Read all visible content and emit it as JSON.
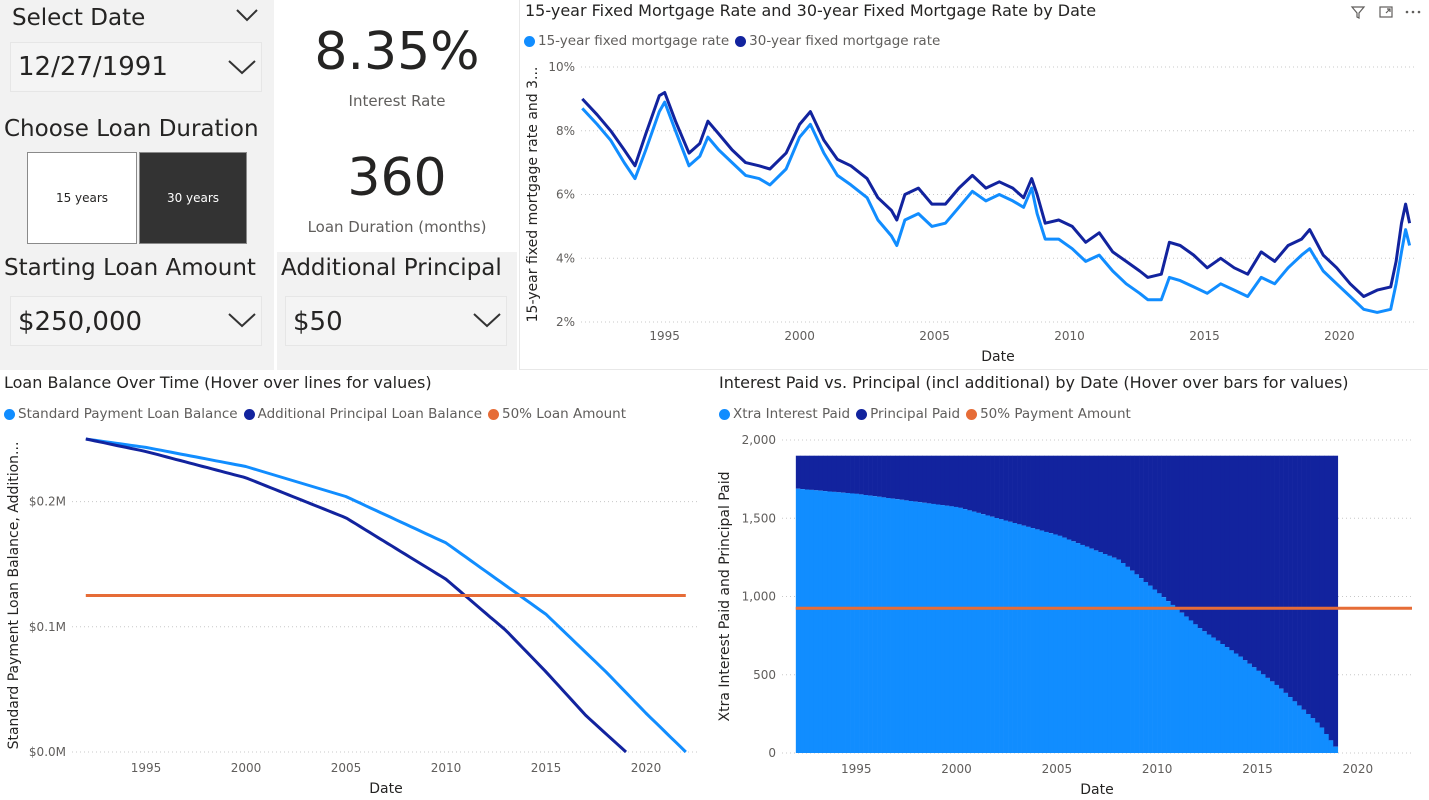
{
  "colors": {
    "light_blue": "#118DFF",
    "dark_blue": "#12239E",
    "orange": "#E66C37",
    "button_selected": "#333333"
  },
  "select_date": {
    "title": "Select Date",
    "value": "12/27/1991"
  },
  "loan_duration": {
    "title": "Choose Loan Duration",
    "options": [
      "15 years",
      "30 years"
    ],
    "selected": "30 years"
  },
  "starting_loan": {
    "title": "Starting Loan Amount",
    "value": "$250,000"
  },
  "additional_principal": {
    "title": "Additional Principal",
    "value": "$50"
  },
  "kpis": {
    "interest_rate_value": "8.35%",
    "interest_rate_label": "Interest Rate",
    "duration_value": "360",
    "duration_label": "Loan Duration (months)"
  },
  "visual_header": {
    "icons": [
      "filter-icon",
      "focus-mode-icon",
      "more-options-icon"
    ]
  },
  "chart_data": [
    {
      "id": "mortgage",
      "type": "line",
      "title": "15-year Fixed Mortgage Rate and 30-year Fixed Mortgage Rate by Date",
      "xlabel": "Date",
      "ylabel": "15-year fixed mortgage rate and 3...",
      "xlim": [
        1991.9,
        2022.8
      ],
      "ylim": [
        2,
        10
      ],
      "x_ticks": [
        1995,
        2000,
        2005,
        2010,
        2015,
        2020
      ],
      "y_ticks": [
        2,
        4,
        6,
        8,
        10
      ],
      "y_tick_labels": [
        "2%",
        "4%",
        "6%",
        "8%",
        "10%"
      ],
      "grid": true,
      "legend_position": "top-left",
      "series": [
        {
          "name": "15-year fixed mortgage rate",
          "color": "#118DFF",
          "points": [
            [
              1991.95,
              8.7
            ],
            [
              1992.5,
              8.2
            ],
            [
              1993.0,
              7.7
            ],
            [
              1993.5,
              7.0
            ],
            [
              1993.9,
              6.5
            ],
            [
              1994.3,
              7.4
            ],
            [
              1994.8,
              8.6
            ],
            [
              1995.0,
              8.9
            ],
            [
              1995.4,
              8.0
            ],
            [
              1995.9,
              6.9
            ],
            [
              1996.3,
              7.2
            ],
            [
              1996.6,
              7.8
            ],
            [
              1997.0,
              7.4
            ],
            [
              1997.5,
              7.0
            ],
            [
              1998.0,
              6.6
            ],
            [
              1998.5,
              6.5
            ],
            [
              1998.9,
              6.3
            ],
            [
              1999.5,
              6.8
            ],
            [
              2000.0,
              7.8
            ],
            [
              2000.4,
              8.2
            ],
            [
              2000.9,
              7.3
            ],
            [
              2001.4,
              6.6
            ],
            [
              2001.9,
              6.3
            ],
            [
              2002.5,
              5.9
            ],
            [
              2002.9,
              5.2
            ],
            [
              2003.4,
              4.7
            ],
            [
              2003.6,
              4.4
            ],
            [
              2003.9,
              5.2
            ],
            [
              2004.4,
              5.4
            ],
            [
              2004.9,
              5.0
            ],
            [
              2005.4,
              5.1
            ],
            [
              2005.9,
              5.6
            ],
            [
              2006.4,
              6.1
            ],
            [
              2006.9,
              5.8
            ],
            [
              2007.4,
              6.0
            ],
            [
              2007.9,
              5.8
            ],
            [
              2008.3,
              5.6
            ],
            [
              2008.6,
              6.2
            ],
            [
              2008.8,
              5.4
            ],
            [
              2009.1,
              4.6
            ],
            [
              2009.6,
              4.6
            ],
            [
              2010.1,
              4.3
            ],
            [
              2010.6,
              3.9
            ],
            [
              2011.1,
              4.1
            ],
            [
              2011.6,
              3.6
            ],
            [
              2012.1,
              3.2
            ],
            [
              2012.6,
              2.9
            ],
            [
              2012.9,
              2.7
            ],
            [
              2013.4,
              2.7
            ],
            [
              2013.7,
              3.4
            ],
            [
              2014.1,
              3.3
            ],
            [
              2014.6,
              3.1
            ],
            [
              2015.1,
              2.9
            ],
            [
              2015.6,
              3.2
            ],
            [
              2016.1,
              3.0
            ],
            [
              2016.6,
              2.8
            ],
            [
              2017.1,
              3.4
            ],
            [
              2017.6,
              3.2
            ],
            [
              2018.1,
              3.7
            ],
            [
              2018.6,
              4.1
            ],
            [
              2018.9,
              4.3
            ],
            [
              2019.4,
              3.6
            ],
            [
              2019.9,
              3.2
            ],
            [
              2020.4,
              2.8
            ],
            [
              2020.9,
              2.4
            ],
            [
              2021.4,
              2.3
            ],
            [
              2021.9,
              2.4
            ],
            [
              2022.1,
              3.2
            ],
            [
              2022.3,
              4.2
            ],
            [
              2022.45,
              4.9
            ],
            [
              2022.6,
              4.4
            ]
          ]
        },
        {
          "name": "30-year fixed mortgage rate",
          "color": "#12239E",
          "points": [
            [
              1991.95,
              9.0
            ],
            [
              1992.5,
              8.5
            ],
            [
              1993.0,
              8.0
            ],
            [
              1993.5,
              7.4
            ],
            [
              1993.9,
              6.9
            ],
            [
              1994.3,
              7.9
            ],
            [
              1994.8,
              9.1
            ],
            [
              1995.0,
              9.2
            ],
            [
              1995.4,
              8.3
            ],
            [
              1995.9,
              7.3
            ],
            [
              1996.3,
              7.6
            ],
            [
              1996.6,
              8.3
            ],
            [
              1997.0,
              7.9
            ],
            [
              1997.5,
              7.4
            ],
            [
              1998.0,
              7.0
            ],
            [
              1998.5,
              6.9
            ],
            [
              1998.9,
              6.8
            ],
            [
              1999.5,
              7.3
            ],
            [
              2000.0,
              8.2
            ],
            [
              2000.4,
              8.6
            ],
            [
              2000.9,
              7.7
            ],
            [
              2001.4,
              7.1
            ],
            [
              2001.9,
              6.9
            ],
            [
              2002.5,
              6.5
            ],
            [
              2002.9,
              5.9
            ],
            [
              2003.4,
              5.5
            ],
            [
              2003.6,
              5.2
            ],
            [
              2003.9,
              6.0
            ],
            [
              2004.4,
              6.2
            ],
            [
              2004.9,
              5.7
            ],
            [
              2005.4,
              5.7
            ],
            [
              2005.9,
              6.2
            ],
            [
              2006.4,
              6.6
            ],
            [
              2006.9,
              6.2
            ],
            [
              2007.4,
              6.4
            ],
            [
              2007.9,
              6.2
            ],
            [
              2008.3,
              5.9
            ],
            [
              2008.6,
              6.5
            ],
            [
              2008.8,
              6.0
            ],
            [
              2009.1,
              5.1
            ],
            [
              2009.6,
              5.2
            ],
            [
              2010.1,
              5.0
            ],
            [
              2010.6,
              4.5
            ],
            [
              2011.1,
              4.8
            ],
            [
              2011.6,
              4.2
            ],
            [
              2012.1,
              3.9
            ],
            [
              2012.6,
              3.6
            ],
            [
              2012.9,
              3.4
            ],
            [
              2013.4,
              3.5
            ],
            [
              2013.7,
              4.5
            ],
            [
              2014.1,
              4.4
            ],
            [
              2014.6,
              4.1
            ],
            [
              2015.1,
              3.7
            ],
            [
              2015.6,
              4.0
            ],
            [
              2016.1,
              3.7
            ],
            [
              2016.6,
              3.5
            ],
            [
              2017.1,
              4.2
            ],
            [
              2017.6,
              3.9
            ],
            [
              2018.1,
              4.4
            ],
            [
              2018.6,
              4.6
            ],
            [
              2018.9,
              4.9
            ],
            [
              2019.4,
              4.1
            ],
            [
              2019.9,
              3.7
            ],
            [
              2020.4,
              3.2
            ],
            [
              2020.9,
              2.8
            ],
            [
              2021.4,
              3.0
            ],
            [
              2021.9,
              3.1
            ],
            [
              2022.1,
              3.9
            ],
            [
              2022.3,
              5.1
            ],
            [
              2022.45,
              5.7
            ],
            [
              2022.6,
              5.1
            ]
          ]
        }
      ]
    },
    {
      "id": "balance",
      "type": "line",
      "title": "Loan Balance Over Time (Hover over lines for values)",
      "xlabel": "Date",
      "ylabel": "Standard Payment Loan Balance, Addition...",
      "xlim": [
        1991.3,
        2022.7
      ],
      "ylim": [
        0,
        250000
      ],
      "x_ticks": [
        1995,
        2000,
        2005,
        2010,
        2015,
        2020
      ],
      "y_ticks": [
        0,
        100000,
        200000
      ],
      "y_tick_labels": [
        "$0.0M",
        "$0.1M",
        "$0.2M"
      ],
      "grid": true,
      "legend_position": "top-left",
      "series": [
        {
          "name": "Standard Payment Loan Balance",
          "color": "#118DFF",
          "points": [
            [
              1991.99,
              250000
            ],
            [
              1995,
              243300
            ],
            [
              2000,
              228000
            ],
            [
              2005,
              204000
            ],
            [
              2010,
              167000
            ],
            [
              2015,
              110000
            ],
            [
              2018,
              64000
            ],
            [
              2020,
              31000
            ],
            [
              2021.99,
              0
            ]
          ]
        },
        {
          "name": "Additional Principal Loan Balance",
          "color": "#12239E",
          "points": [
            [
              1991.99,
              250000
            ],
            [
              1995,
              240000
            ],
            [
              2000,
              219000
            ],
            [
              2005,
              187000
            ],
            [
              2010,
              138000
            ],
            [
              2013,
              97000
            ],
            [
              2015,
              64000
            ],
            [
              2017,
              29000
            ],
            [
              2019.0,
              0
            ]
          ]
        },
        {
          "name": "50% Loan Amount",
          "color": "#E66C37",
          "points": [
            [
              1991.99,
              125000
            ],
            [
              2021.99,
              125000
            ]
          ]
        }
      ]
    },
    {
      "id": "interest_principal",
      "type": "bar",
      "title": "Interest Paid vs. Principal (incl additional) by Date (Hover over bars for values)",
      "xlabel": "Date",
      "ylabel": "Xtra Interest Paid and Principal Paid",
      "xlim": [
        1991.3,
        2022.7
      ],
      "ylim": [
        0,
        2000
      ],
      "x_ticks": [
        1995,
        2000,
        2005,
        2010,
        2015,
        2020
      ],
      "y_ticks": [
        0,
        500,
        1000,
        1500,
        2000
      ],
      "y_tick_labels": [
        "0",
        "500",
        "1,000",
        "1,500",
        "2,000"
      ],
      "grid": true,
      "legend_position": "top-left",
      "stacked": true,
      "total_payment": 1900,
      "series": [
        {
          "name": "Xtra Interest Paid",
          "color": "#118DFF",
          "points": [
            [
              1991.99,
              1689
            ],
            [
              1995,
              1655
            ],
            [
              2000,
              1570
            ],
            [
              2005,
              1390
            ],
            [
              2008,
              1235
            ],
            [
              2010,
              1020
            ],
            [
              2012,
              800
            ],
            [
              2014,
              620
            ],
            [
              2016,
              420
            ],
            [
              2018,
              180
            ],
            [
              2019.0,
              0
            ]
          ]
        },
        {
          "name": "Principal Paid",
          "color": "#12239E",
          "points": [
            [
              1991.99,
              211
            ],
            [
              1995,
              245
            ],
            [
              2000,
              330
            ],
            [
              2005,
              510
            ],
            [
              2008,
              665
            ],
            [
              2010,
              880
            ],
            [
              2012,
              1100
            ],
            [
              2014,
              1280
            ],
            [
              2016,
              1480
            ],
            [
              2018,
              1720
            ],
            [
              2019.0,
              1900
            ]
          ]
        },
        {
          "name": "50% Payment Amount",
          "color": "#E66C37",
          "points": [
            [
              1991.99,
              925
            ],
            [
              2022.7,
              925
            ]
          ]
        }
      ]
    }
  ]
}
